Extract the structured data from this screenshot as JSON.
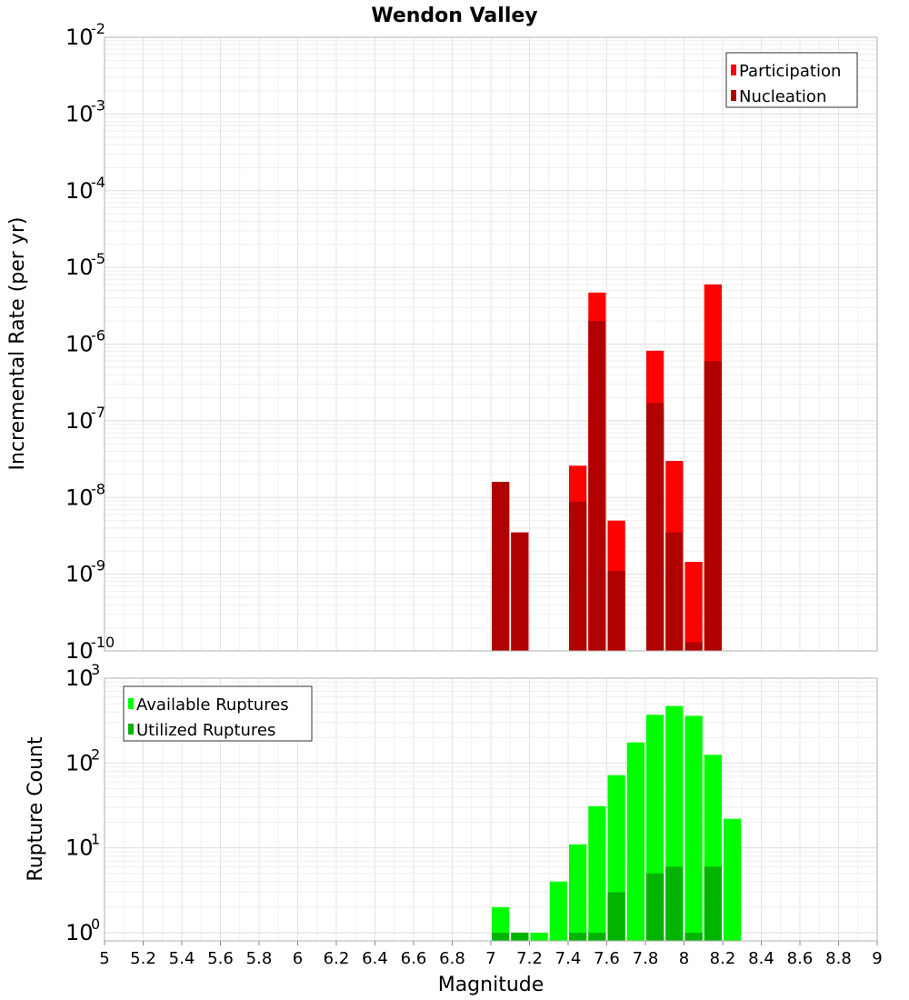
{
  "chart_data": [
    {
      "type": "bar",
      "title": "Wendon Valley",
      "ylabel": "Incremental Rate (per yr)",
      "yscale": "log",
      "ylim": [
        1e-10,
        0.01
      ],
      "xlim": [
        5,
        9
      ],
      "bar_width": 0.1,
      "grid": true,
      "legend": "top-right",
      "series": [
        {
          "name": "Participation",
          "color": "#ff0000",
          "x": [
            7.05,
            7.15,
            7.45,
            7.55,
            7.65,
            7.85,
            7.95,
            8.05,
            8.15
          ],
          "values": [
            1.6e-08,
            3.5e-09,
            2.6e-08,
            4.7e-06,
            5e-09,
            8.2e-07,
            3e-08,
            1.45e-09,
            6e-06
          ]
        },
        {
          "name": "Nucleation",
          "color": "#b00000",
          "x": [
            7.05,
            7.15,
            7.45,
            7.55,
            7.65,
            7.85,
            7.95,
            8.05,
            8.15
          ],
          "values": [
            1.6e-08,
            3.5e-09,
            8.8e-09,
            2e-06,
            1.1e-09,
            1.7e-07,
            3.5e-09,
            1.3e-10,
            6e-07
          ]
        }
      ]
    },
    {
      "type": "bar",
      "xlabel": "Magnitude",
      "ylabel": "Rupture Count",
      "yscale": "log",
      "ylim": [
        0.8,
        1000
      ],
      "xlim": [
        5,
        9
      ],
      "bar_width": 0.1,
      "grid": true,
      "legend": "top-left",
      "xticks": [
        "5",
        "5.2",
        "5.4",
        "5.6",
        "5.8",
        "6",
        "6.2",
        "6.4",
        "6.6",
        "6.8",
        "7",
        "7.2",
        "7.4",
        "7.6",
        "7.8",
        "8",
        "8.2",
        "8.4",
        "8.6",
        "8.8",
        "9"
      ],
      "series": [
        {
          "name": "Available Ruptures",
          "color": "#00ff00",
          "x": [
            7.05,
            7.15,
            7.25,
            7.35,
            7.45,
            7.55,
            7.65,
            7.75,
            7.85,
            7.95,
            8.05,
            8.15,
            8.25
          ],
          "values": [
            2,
            1,
            1,
            4,
            11,
            31,
            72,
            175,
            370,
            470,
            360,
            125,
            22
          ]
        },
        {
          "name": "Utilized Ruptures",
          "color": "#00b400",
          "x": [
            7.05,
            7.15,
            7.25,
            7.35,
            7.45,
            7.55,
            7.65,
            7.75,
            7.85,
            7.95,
            8.05,
            8.15,
            8.25
          ],
          "values": [
            1,
            1,
            0,
            0,
            1,
            1,
            3,
            0,
            5,
            6,
            1,
            6,
            0
          ]
        }
      ]
    }
  ]
}
